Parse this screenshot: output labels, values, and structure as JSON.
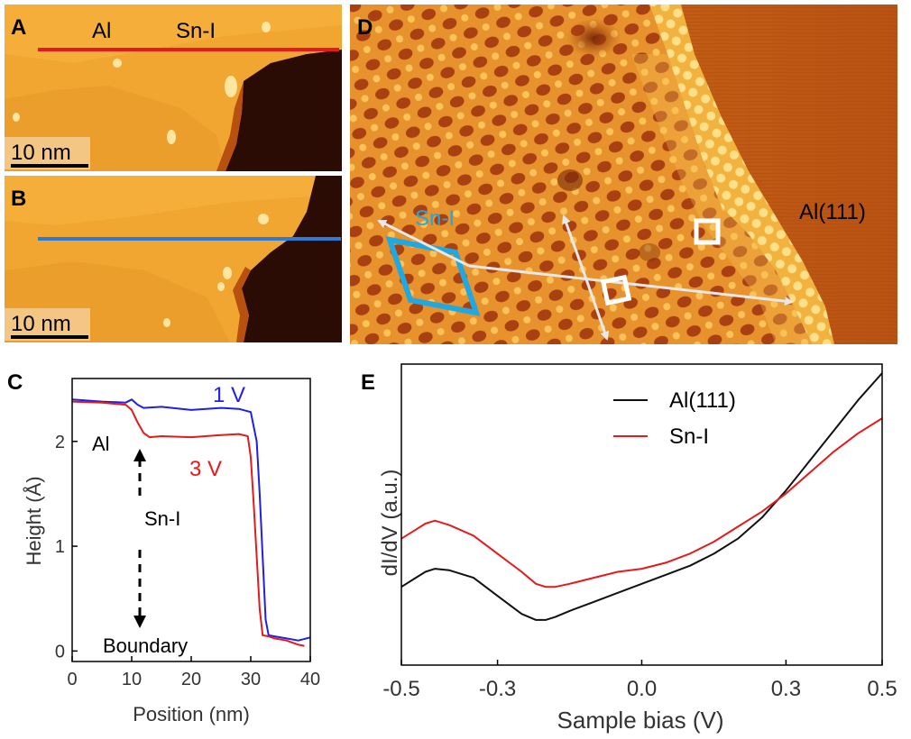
{
  "panels": {
    "A": {
      "letter": "A",
      "labels": [
        "Al",
        "Sn-I"
      ],
      "scale_bar": "10 nm",
      "line_color": "#e41a1c"
    },
    "B": {
      "letter": "B",
      "scale_bar": "10 nm",
      "line_color": "#2c7bd6"
    },
    "D": {
      "letter": "D",
      "labels": [
        "Sn-I",
        "Al(111)"
      ],
      "cell_color": "#22a8e0"
    },
    "C": {
      "letter": "C"
    },
    "E": {
      "letter": "E"
    }
  },
  "chart_data": [
    {
      "panel": "C",
      "type": "line",
      "xlabel": "Position (nm)",
      "ylabel": "Height (Å)",
      "xlim": [
        0,
        40
      ],
      "ylim": [
        -0.1,
        2.6
      ],
      "xticks": [
        0,
        10,
        20,
        30,
        40
      ],
      "yticks": [
        0,
        1,
        2
      ],
      "annotations": [
        "Al",
        "Sn-I",
        "Boundary"
      ],
      "series": [
        {
          "name": "1 V",
          "color": "#1f1fe6",
          "x": [
            0,
            5,
            9,
            10,
            11,
            12,
            15,
            20,
            25,
            28,
            30,
            31,
            31.5,
            32,
            32.5,
            33,
            34,
            36,
            38,
            40
          ],
          "y": [
            2.4,
            2.38,
            2.37,
            2.4,
            2.35,
            2.32,
            2.33,
            2.3,
            2.32,
            2.31,
            2.28,
            2.0,
            1.5,
            0.9,
            0.3,
            0.15,
            0.14,
            0.12,
            0.1,
            0.13
          ]
        },
        {
          "name": "3 V",
          "color": "#e41a1c",
          "x": [
            0,
            5,
            9,
            10,
            11,
            12,
            13,
            15,
            20,
            25,
            28,
            29.5,
            30,
            30.5,
            31,
            31.5,
            32,
            33,
            34,
            36,
            38,
            39
          ],
          "y": [
            2.38,
            2.37,
            2.35,
            2.3,
            2.18,
            2.08,
            2.04,
            2.05,
            2.04,
            2.06,
            2.07,
            2.05,
            1.85,
            1.4,
            0.9,
            0.4,
            0.15,
            0.14,
            0.12,
            0.1,
            0.06,
            0.05
          ]
        }
      ]
    },
    {
      "panel": "E",
      "type": "line",
      "xlabel": "Sample bias (V)",
      "ylabel": "dI/dV (a.u.)",
      "xlim": [
        -0.5,
        0.5
      ],
      "ylim": [
        0,
        1
      ],
      "xticks": [
        -0.5,
        -0.3,
        0.0,
        0.3,
        0.5
      ],
      "xtick_labels": [
        "-0.5",
        "-0.3",
        "0.0",
        "0.3",
        "0.5"
      ],
      "legend": "top",
      "series": [
        {
          "name": "Al(111)",
          "color": "#111111",
          "x": [
            -0.5,
            -0.47,
            -0.45,
            -0.43,
            -0.4,
            -0.35,
            -0.3,
            -0.25,
            -0.22,
            -0.2,
            -0.18,
            -0.15,
            -0.1,
            -0.05,
            0.0,
            0.05,
            0.1,
            0.15,
            0.2,
            0.25,
            0.3,
            0.35,
            0.4,
            0.45,
            0.5
          ],
          "y": [
            0.26,
            0.29,
            0.31,
            0.32,
            0.315,
            0.29,
            0.23,
            0.17,
            0.15,
            0.15,
            0.16,
            0.18,
            0.21,
            0.24,
            0.27,
            0.3,
            0.33,
            0.37,
            0.42,
            0.49,
            0.58,
            0.68,
            0.78,
            0.88,
            0.97
          ]
        },
        {
          "name": "Sn-I",
          "color": "#e41a1c",
          "x": [
            -0.5,
            -0.47,
            -0.45,
            -0.43,
            -0.4,
            -0.35,
            -0.3,
            -0.25,
            -0.22,
            -0.2,
            -0.18,
            -0.15,
            -0.1,
            -0.05,
            0.0,
            0.05,
            0.1,
            0.15,
            0.2,
            0.25,
            0.3,
            0.35,
            0.4,
            0.45,
            0.5
          ],
          "y": [
            0.42,
            0.45,
            0.47,
            0.48,
            0.465,
            0.43,
            0.37,
            0.31,
            0.27,
            0.26,
            0.26,
            0.27,
            0.29,
            0.31,
            0.32,
            0.34,
            0.37,
            0.41,
            0.46,
            0.51,
            0.57,
            0.64,
            0.71,
            0.77,
            0.82
          ]
        }
      ]
    }
  ]
}
